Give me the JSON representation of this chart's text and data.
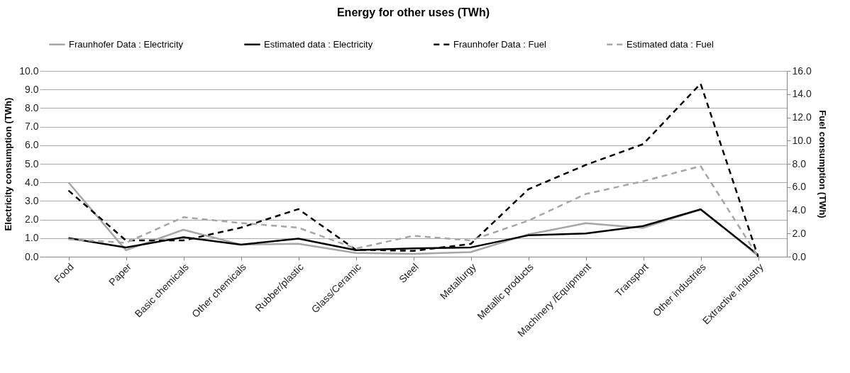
{
  "chart_data": {
    "type": "line",
    "title": "Energy for other uses (TWh)",
    "categories": [
      "Food",
      "Paper",
      "Basic chemicals",
      "Other chemicals",
      "Rubber/plastic",
      "Glass/Ceramic",
      "Steel",
      "Metallurgy",
      "Metallic products",
      "Machinery /Equipment",
      "Transport",
      "Other industries",
      "Extractive industry"
    ],
    "ylabel": "Electricity consumption (TWh)",
    "y2label": "Fuel consumption (TWh)",
    "ylim": [
      0,
      10
    ],
    "yticks": [
      {
        "value": 0,
        "label": "0.0"
      },
      {
        "value": 1,
        "label": "1.0"
      },
      {
        "value": 2,
        "label": "2.0"
      },
      {
        "value": 3,
        "label": "3.0"
      },
      {
        "value": 4,
        "label": "4.0"
      },
      {
        "value": 5,
        "label": "5.0"
      },
      {
        "value": 6,
        "label": "6.0"
      },
      {
        "value": 7,
        "label": "7.0"
      },
      {
        "value": 8,
        "label": "8.0"
      },
      {
        "value": 9,
        "label": "9.0"
      },
      {
        "value": 10,
        "label": "10.0"
      }
    ],
    "y2lim": [
      0,
      16
    ],
    "y2ticks": [
      {
        "value": 0,
        "label": "0.0"
      },
      {
        "value": 2,
        "label": "2.0"
      },
      {
        "value": 4,
        "label": "4.0"
      },
      {
        "value": 6,
        "label": "6.0"
      },
      {
        "value": 8,
        "label": "8.0"
      },
      {
        "value": 10,
        "label": "10.0"
      },
      {
        "value": 12,
        "label": "12.0"
      },
      {
        "value": 14,
        "label": "14.0"
      },
      {
        "value": 16,
        "label": "16.0"
      }
    ],
    "grid": "y",
    "legend": "top",
    "marker": "none",
    "series": [
      {
        "name": "Fraunhofer Data : Electricity",
        "color": "#a6a6a6",
        "line_style": "solid",
        "values": [
          4.0,
          0.35,
          1.45,
          0.65,
          0.7,
          0.2,
          0.15,
          0.25,
          1.2,
          1.8,
          1.55,
          2.55,
          0.05
        ]
      },
      {
        "name": "Estimated data : Electricity",
        "color": "#000000",
        "line_style": "solid",
        "values": [
          1.0,
          0.5,
          1.05,
          0.65,
          0.97,
          0.35,
          0.45,
          0.5,
          1.15,
          1.25,
          1.65,
          2.55,
          0.1
        ]
      },
      {
        "name": "Fraunhofer Data : Fuel",
        "color": "#000000",
        "line_style": "dashed",
        "axis": "y2",
        "values": [
          5.7,
          1.4,
          1.4,
          2.5,
          4.1,
          0.6,
          0.5,
          1.1,
          5.8,
          7.9,
          9.7,
          14.9,
          0
        ]
      },
      {
        "name": "Estimated data : Fuel",
        "color": "#a6a6a6",
        "line_style": "dashed",
        "axis": "y2",
        "values": [
          1.5,
          1.2,
          3.4,
          2.9,
          2.5,
          0.7,
          1.8,
          1.4,
          3.1,
          5.4,
          6.5,
          7.8,
          0
        ]
      }
    ]
  }
}
